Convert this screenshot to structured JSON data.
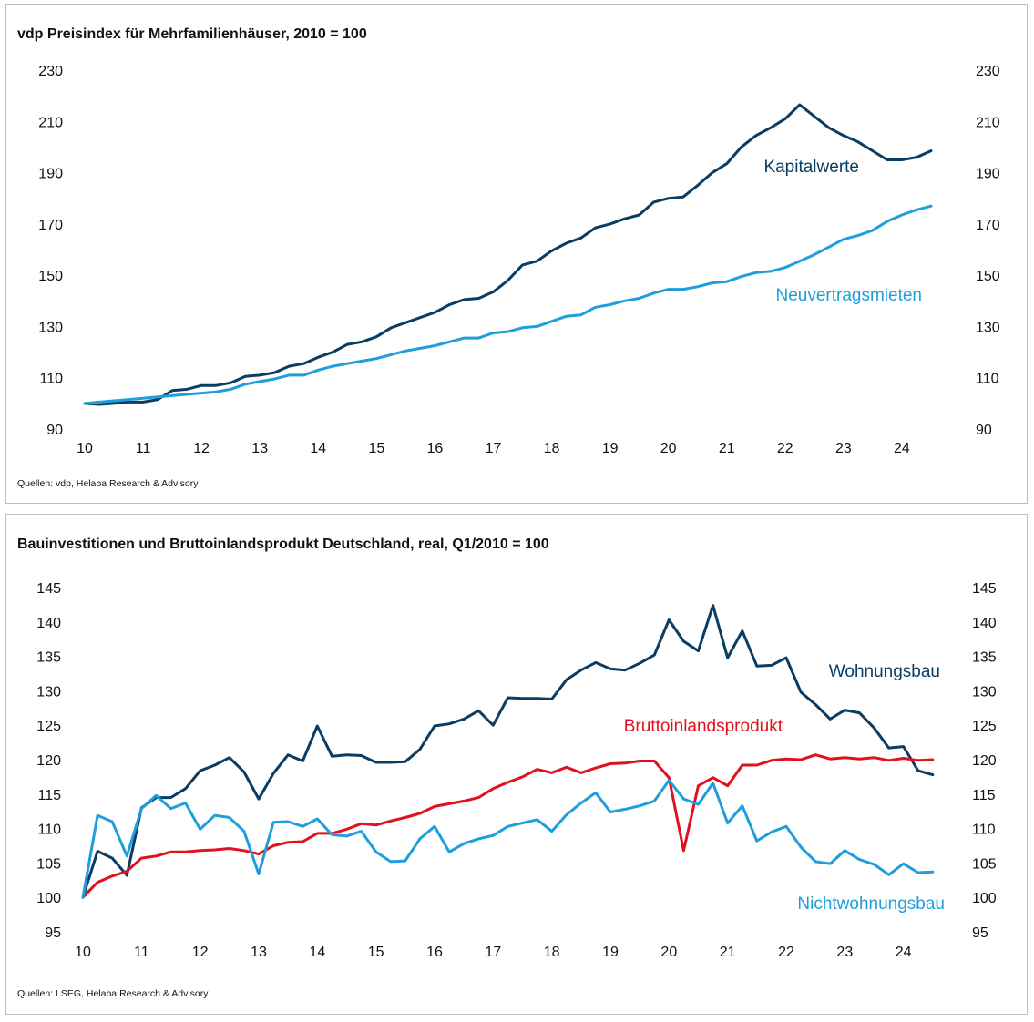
{
  "chart_data": [
    {
      "type": "line",
      "title": "vdp Preisindex für Mehrfamilienhäuser, 2010 = 100",
      "source": "Quellen: vdp, Helaba Research & Advisory",
      "ylim": [
        90,
        230
      ],
      "yticks": [
        "90",
        "110",
        "130",
        "150",
        "170",
        "190",
        "210",
        "230"
      ],
      "xlim": [
        2010,
        2025
      ],
      "xticks": [
        "10",
        "11",
        "12",
        "13",
        "14",
        "15",
        "16",
        "17",
        "18",
        "19",
        "20",
        "21",
        "22",
        "23",
        "24"
      ],
      "grid": false,
      "series": [
        {
          "name": "Kapitalwerte",
          "color": "#0b3d63",
          "x": [
            2010.0,
            2010.25,
            2010.5,
            2010.75,
            2011.0,
            2011.25,
            2011.5,
            2011.75,
            2012.0,
            2012.25,
            2012.5,
            2012.75,
            2013.0,
            2013.25,
            2013.5,
            2013.75,
            2014.0,
            2014.25,
            2014.5,
            2014.75,
            2015.0,
            2015.25,
            2015.5,
            2015.75,
            2016.0,
            2016.25,
            2016.5,
            2016.75,
            2017.0,
            2017.25,
            2017.5,
            2017.75,
            2018.0,
            2018.25,
            2018.5,
            2018.75,
            2019.0,
            2019.25,
            2019.5,
            2019.75,
            2020.0,
            2020.25,
            2020.5,
            2020.75,
            2021.0,
            2021.25,
            2021.5,
            2021.75,
            2022.0,
            2022.25,
            2022.5,
            2022.75,
            2023.0,
            2023.25,
            2023.5,
            2023.75,
            2024.0,
            2024.25,
            2024.5
          ],
          "values": [
            100.0,
            99.6,
            100.0,
            100.5,
            100.5,
            101.5,
            105.0,
            105.5,
            107.0,
            107.0,
            108.0,
            110.5,
            111.0,
            112.0,
            114.5,
            115.5,
            118.0,
            120.0,
            123.0,
            124.0,
            126.0,
            129.5,
            131.5,
            133.5,
            135.5,
            138.5,
            140.5,
            141.0,
            143.5,
            148.0,
            154.0,
            155.5,
            159.5,
            162.5,
            164.5,
            168.5,
            170.0,
            172.0,
            173.5,
            178.5,
            180.0,
            180.5,
            185.0,
            190.0,
            193.5,
            200.0,
            204.5,
            207.5,
            211.0,
            216.5,
            212.0,
            207.5,
            204.5,
            202.0,
            198.5,
            195.0,
            195.0,
            196.0,
            198.5
          ]
        },
        {
          "name": "Neuvertragsmieten",
          "color": "#1e9fdc",
          "x": [
            2010.0,
            2010.25,
            2010.5,
            2010.75,
            2011.0,
            2011.25,
            2011.5,
            2011.75,
            2012.0,
            2012.25,
            2012.5,
            2012.75,
            2013.0,
            2013.25,
            2013.5,
            2013.75,
            2014.0,
            2014.25,
            2014.5,
            2014.75,
            2015.0,
            2015.25,
            2015.5,
            2015.75,
            2016.0,
            2016.25,
            2016.5,
            2016.75,
            2017.0,
            2017.25,
            2017.5,
            2017.75,
            2018.0,
            2018.25,
            2018.5,
            2018.75,
            2019.0,
            2019.25,
            2019.5,
            2019.75,
            2020.0,
            2020.25,
            2020.5,
            2020.75,
            2021.0,
            2021.25,
            2021.5,
            2021.75,
            2022.0,
            2022.25,
            2022.5,
            2022.75,
            2023.0,
            2023.25,
            2023.5,
            2023.75,
            2024.0,
            2024.25,
            2024.5
          ],
          "values": [
            100.0,
            100.5,
            101.0,
            101.5,
            102.0,
            102.5,
            103.0,
            103.5,
            104.0,
            104.5,
            105.5,
            107.5,
            108.5,
            109.5,
            111.0,
            111.0,
            113.0,
            114.5,
            115.5,
            116.5,
            117.5,
            119.0,
            120.5,
            121.5,
            122.5,
            124.0,
            125.5,
            125.5,
            127.5,
            128.0,
            129.5,
            130.0,
            132.0,
            134.0,
            134.5,
            137.5,
            138.5,
            140.0,
            141.0,
            143.0,
            144.5,
            144.5,
            145.5,
            147.0,
            147.5,
            149.5,
            151.0,
            151.5,
            153.0,
            155.5,
            158.0,
            161.0,
            164.0,
            165.5,
            167.5,
            171.0,
            173.5,
            175.5,
            177.0
          ]
        }
      ],
      "annotations": [
        "Kapitalwerte",
        "Neuvertragsmieten"
      ]
    },
    {
      "type": "line",
      "title": "Bauinvestitionen und Bruttoinlandsprodukt Deutschland, real, Q1/2010 = 100",
      "source": "Quellen: LSEG, Helaba Research & Advisory",
      "ylim": [
        95,
        145
      ],
      "yticks": [
        "95",
        "100",
        "105",
        "110",
        "115",
        "120",
        "125",
        "130",
        "135",
        "140",
        "145"
      ],
      "xlim": [
        2010,
        2025
      ],
      "xticks": [
        "10",
        "11",
        "12",
        "13",
        "14",
        "15",
        "16",
        "17",
        "18",
        "19",
        "20",
        "21",
        "22",
        "23",
        "24"
      ],
      "grid": false,
      "series": [
        {
          "name": "Wohnungsbau",
          "color": "#0b3d63",
          "x": [
            2010.0,
            2010.25,
            2010.5,
            2010.75,
            2011.0,
            2011.25,
            2011.5,
            2011.75,
            2012.0,
            2012.25,
            2012.5,
            2012.75,
            2013.0,
            2013.25,
            2013.5,
            2013.75,
            2014.0,
            2014.25,
            2014.5,
            2014.75,
            2015.0,
            2015.25,
            2015.5,
            2015.75,
            2016.0,
            2016.25,
            2016.5,
            2016.75,
            2017.0,
            2017.25,
            2017.5,
            2017.75,
            2018.0,
            2018.25,
            2018.5,
            2018.75,
            2019.0,
            2019.25,
            2019.5,
            2019.75,
            2020.0,
            2020.25,
            2020.5,
            2020.75,
            2021.0,
            2021.25,
            2021.5,
            2021.75,
            2022.0,
            2022.25,
            2022.5,
            2022.75,
            2023.0,
            2023.25,
            2023.5,
            2023.75,
            2024.0,
            2024.25,
            2024.5
          ],
          "values": [
            100.0,
            106.7,
            105.7,
            103.2,
            113.0,
            114.5,
            114.5,
            115.8,
            118.4,
            119.2,
            120.3,
            118.2,
            114.3,
            118.0,
            120.7,
            119.8,
            124.9,
            120.5,
            120.7,
            120.6,
            119.6,
            119.6,
            119.7,
            121.5,
            124.9,
            125.2,
            125.9,
            127.1,
            125.0,
            129.0,
            128.9,
            128.9,
            128.8,
            131.6,
            133.0,
            134.1,
            133.2,
            133.0,
            134.0,
            135.2,
            140.3,
            137.2,
            135.8,
            142.4,
            134.8,
            138.7,
            133.6,
            133.7,
            134.8,
            129.8,
            128.0,
            125.9,
            127.2,
            126.8,
            124.6,
            121.7,
            121.9,
            118.4,
            117.8
          ]
        },
        {
          "name": "Bruttoinlandsprodukt",
          "color": "#e1121f",
          "x": [
            2010.0,
            2010.25,
            2010.5,
            2010.75,
            2011.0,
            2011.25,
            2011.5,
            2011.75,
            2012.0,
            2012.25,
            2012.5,
            2012.75,
            2013.0,
            2013.25,
            2013.5,
            2013.75,
            2014.0,
            2014.25,
            2014.5,
            2014.75,
            2015.0,
            2015.25,
            2015.5,
            2015.75,
            2016.0,
            2016.25,
            2016.5,
            2016.75,
            2017.0,
            2017.25,
            2017.5,
            2017.75,
            2018.0,
            2018.25,
            2018.5,
            2018.75,
            2019.0,
            2019.25,
            2019.5,
            2019.75,
            2020.0,
            2020.25,
            2020.5,
            2020.75,
            2021.0,
            2021.25,
            2021.5,
            2021.75,
            2022.0,
            2022.25,
            2022.5,
            2022.75,
            2023.0,
            2023.25,
            2023.5,
            2023.75,
            2024.0,
            2024.25,
            2024.5
          ],
          "values": [
            100.0,
            102.2,
            103.1,
            103.8,
            105.7,
            106.0,
            106.6,
            106.6,
            106.8,
            106.9,
            107.1,
            106.8,
            106.3,
            107.5,
            108.0,
            108.1,
            109.3,
            109.3,
            109.9,
            110.7,
            110.5,
            111.1,
            111.6,
            112.2,
            113.2,
            113.6,
            114.0,
            114.5,
            115.8,
            116.7,
            117.5,
            118.6,
            118.1,
            118.9,
            118.1,
            118.8,
            119.4,
            119.5,
            119.8,
            119.8,
            117.4,
            106.8,
            116.2,
            117.4,
            116.2,
            119.2,
            119.2,
            119.9,
            120.1,
            120.0,
            120.7,
            120.1,
            120.3,
            120.1,
            120.3,
            119.9,
            120.2,
            119.9,
            120.0
          ]
        },
        {
          "name": "Nichtwohnungsbau",
          "color": "#1e9fdc",
          "x": [
            2010.0,
            2010.25,
            2010.5,
            2010.75,
            2011.0,
            2011.25,
            2011.5,
            2011.75,
            2012.0,
            2012.25,
            2012.5,
            2012.75,
            2013.0,
            2013.25,
            2013.5,
            2013.75,
            2014.0,
            2014.25,
            2014.5,
            2014.75,
            2015.0,
            2015.25,
            2015.5,
            2015.75,
            2016.0,
            2016.25,
            2016.5,
            2016.75,
            2017.0,
            2017.25,
            2017.5,
            2017.75,
            2018.0,
            2018.25,
            2018.5,
            2018.75,
            2019.0,
            2019.25,
            2019.5,
            2019.75,
            2020.0,
            2020.25,
            2020.5,
            2020.75,
            2021.0,
            2021.25,
            2021.5,
            2021.75,
            2022.0,
            2022.25,
            2022.5,
            2022.75,
            2023.0,
            2023.25,
            2023.5,
            2023.75,
            2024.0,
            2024.25,
            2024.5
          ],
          "values": [
            100.0,
            111.9,
            111.0,
            106.0,
            112.9,
            114.8,
            112.9,
            113.7,
            109.9,
            111.9,
            111.6,
            109.6,
            103.4,
            110.9,
            111.0,
            110.3,
            111.4,
            109.1,
            108.9,
            109.6,
            106.6,
            105.2,
            105.3,
            108.5,
            110.3,
            106.6,
            107.8,
            108.5,
            109.0,
            110.3,
            110.8,
            111.3,
            109.6,
            112.0,
            113.7,
            115.2,
            112.4,
            112.8,
            113.3,
            114.0,
            117.0,
            114.3,
            113.5,
            116.6,
            110.8,
            113.3,
            108.2,
            109.5,
            110.3,
            107.3,
            105.2,
            104.9,
            106.8,
            105.5,
            104.8,
            103.3,
            104.9,
            103.6,
            103.7
          ]
        }
      ],
      "annotations": [
        "Wohnungsbau",
        "Bruttoinlandsprodukt",
        "Nichtwohnungsbau"
      ]
    }
  ]
}
